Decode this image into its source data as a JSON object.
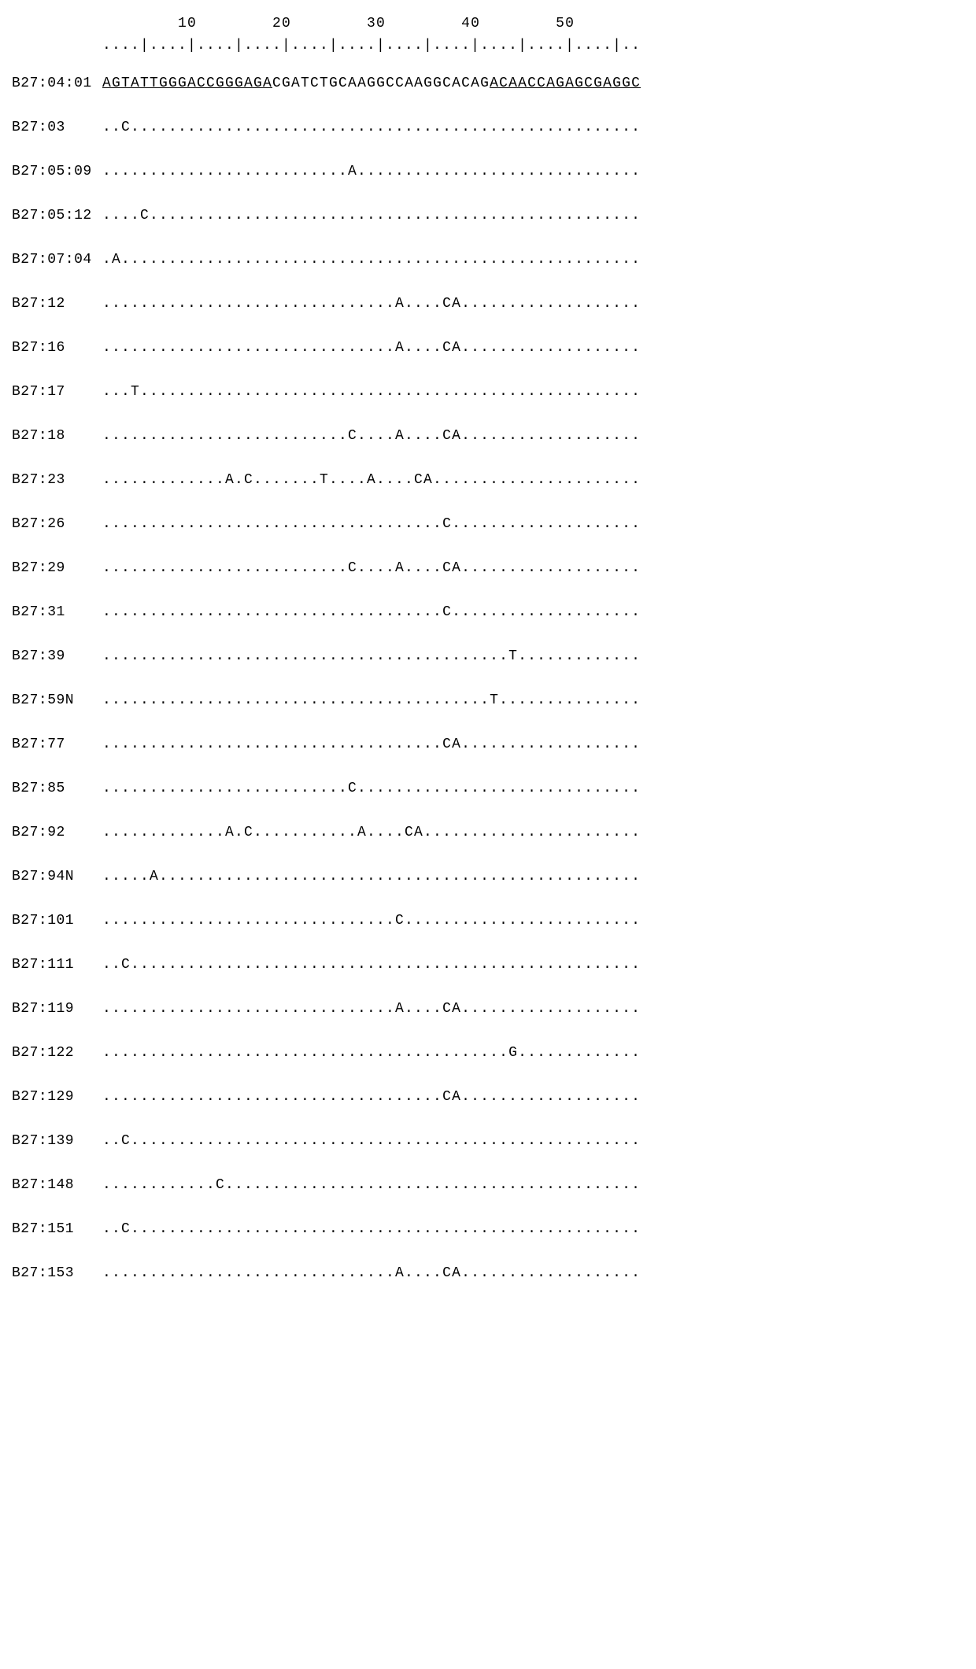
{
  "scale_numbers": "        10        20        30        40        50",
  "ruler": "....|....|....|....|....|....|....|....|....|....|....|..",
  "reference": {
    "label": "B27:04:01",
    "seq_left_underlined": "AGTATTGGGACCGGGAGA",
    "seq_middle": "CGATCTGCAAGGCCAAGGCACAG",
    "seq_right_underlined": "ACAACCAGAGCGAGGC"
  },
  "rows": [
    {
      "label": "B27:03",
      "seq": "..C......................................................"
    },
    {
      "label": "B27:05:09",
      "seq": "..........................A.............................."
    },
    {
      "label": "B27:05:12",
      "seq": "....C...................................................."
    },
    {
      "label": "B27:07:04",
      "seq": ".A......................................................."
    },
    {
      "label": "B27:12",
      "seq": "...............................A....CA..................."
    },
    {
      "label": "B27:16",
      "seq": "...............................A....CA..................."
    },
    {
      "label": "B27:17",
      "seq": "...T....................................................."
    },
    {
      "label": "B27:18",
      "seq": "..........................C....A....CA..................."
    },
    {
      "label": "B27:23",
      "seq": ".............A.C.......T....A....CA......................"
    },
    {
      "label": "B27:26",
      "seq": "....................................C...................."
    },
    {
      "label": "B27:29",
      "seq": "..........................C....A....CA..................."
    },
    {
      "label": "B27:31",
      "seq": "....................................C...................."
    },
    {
      "label": "B27:39",
      "seq": "...........................................T............."
    },
    {
      "label": "B27:59N",
      "seq": ".........................................T..............."
    },
    {
      "label": "B27:77",
      "seq": "....................................CA..................."
    },
    {
      "label": "B27:85",
      "seq": "..........................C.............................."
    },
    {
      "label": "B27:92",
      "seq": ".............A.C...........A....CA......................."
    },
    {
      "label": "B27:94N",
      "seq": ".....A..................................................."
    },
    {
      "label": "B27:101",
      "seq": "...............................C........................."
    },
    {
      "label": "B27:111",
      "seq": "..C......................................................"
    },
    {
      "label": "B27:119",
      "seq": "...............................A....CA..................."
    },
    {
      "label": "B27:122",
      "seq": "...........................................G............."
    },
    {
      "label": "B27:129",
      "seq": "....................................CA..................."
    },
    {
      "label": "B27:139",
      "seq": "..C......................................................"
    },
    {
      "label": "B27:148",
      "seq": "............C............................................"
    },
    {
      "label": "B27:151",
      "seq": "..C......................................................"
    },
    {
      "label": "B27:153",
      "seq": "...............................A....CA..................."
    }
  ],
  "colors": {
    "background": "#ffffff",
    "text": "#000000"
  },
  "font": {
    "family": "Courier New",
    "size_pt": 14
  }
}
